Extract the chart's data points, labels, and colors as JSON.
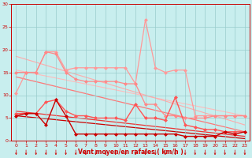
{
  "x": [
    0,
    1,
    2,
    3,
    4,
    5,
    6,
    7,
    8,
    9,
    10,
    11,
    12,
    13,
    14,
    15,
    16,
    17,
    18,
    19,
    20,
    21,
    22,
    23
  ],
  "series": [
    {
      "color": "#FF9999",
      "linewidth": 0.9,
      "marker": "D",
      "markersize": 2.0,
      "y": [
        10.5,
        15.0,
        15.0,
        19.5,
        19.5,
        15.5,
        16.0,
        16.0,
        16.0,
        16.0,
        16.0,
        16.0,
        12.5,
        26.5,
        16.0,
        15.0,
        15.5,
        15.5,
        5.5,
        5.5,
        5.5,
        5.5,
        5.5,
        5.5
      ]
    },
    {
      "color": "#FF8888",
      "linewidth": 0.9,
      "marker": "D",
      "markersize": 2.0,
      "y": [
        15.0,
        15.0,
        15.0,
        19.5,
        19.0,
        15.0,
        13.5,
        13.0,
        13.0,
        13.0,
        13.0,
        12.5,
        12.5,
        8.0,
        8.0,
        5.5,
        5.5,
        5.0,
        5.0,
        5.0,
        5.5,
        5.5,
        5.5,
        5.5
      ]
    },
    {
      "color": "#FF5555",
      "linewidth": 1.0,
      "marker": "D",
      "markersize": 2.0,
      "y": [
        6.0,
        6.0,
        6.0,
        8.5,
        9.0,
        6.5,
        5.5,
        5.5,
        5.0,
        5.0,
        5.0,
        4.5,
        8.0,
        5.0,
        5.0,
        4.5,
        9.5,
        3.5,
        3.0,
        2.5,
        2.5,
        2.0,
        2.0,
        2.0
      ]
    },
    {
      "color": "#CC0000",
      "linewidth": 1.0,
      "marker": "D",
      "markersize": 2.0,
      "y": [
        5.5,
        6.0,
        6.0,
        3.5,
        9.0,
        5.5,
        1.5,
        1.5,
        1.5,
        1.5,
        1.5,
        1.5,
        1.5,
        1.5,
        1.5,
        1.5,
        1.5,
        1.0,
        1.0,
        1.0,
        1.0,
        2.0,
        1.5,
        2.0
      ]
    }
  ],
  "trend_lines": [
    {
      "color": "#FFBBBB",
      "linewidth": 0.8,
      "x0": 0,
      "y0": 15.5,
      "x1": 23,
      "y1": 5.5
    },
    {
      "color": "#FFAAAA",
      "linewidth": 0.8,
      "x0": 0,
      "y0": 18.5,
      "x1": 23,
      "y1": 3.5
    },
    {
      "color": "#FF7777",
      "linewidth": 0.9,
      "x0": 0,
      "y0": 14.0,
      "x1": 23,
      "y1": 2.0
    },
    {
      "color": "#EE3333",
      "linewidth": 0.9,
      "x0": 0,
      "y0": 6.5,
      "x1": 23,
      "y1": 1.0
    },
    {
      "color": "#CC0000",
      "linewidth": 0.9,
      "x0": 0,
      "y0": 5.5,
      "x1": 23,
      "y1": 0.5
    }
  ],
  "xlabel": "Vent moyen/en rafales ( km/h )",
  "xlim": [
    -0.5,
    23.5
  ],
  "ylim": [
    0,
    30
  ],
  "yticks": [
    0,
    5,
    10,
    15,
    20,
    25,
    30
  ],
  "xticks": [
    0,
    1,
    2,
    3,
    4,
    5,
    6,
    7,
    8,
    9,
    10,
    11,
    12,
    13,
    14,
    15,
    16,
    17,
    18,
    19,
    20,
    21,
    22,
    23
  ],
  "bg_color": "#C8EEEE",
  "grid_color": "#99CCCC",
  "tick_color": "#CC0000",
  "label_color": "#CC0000"
}
